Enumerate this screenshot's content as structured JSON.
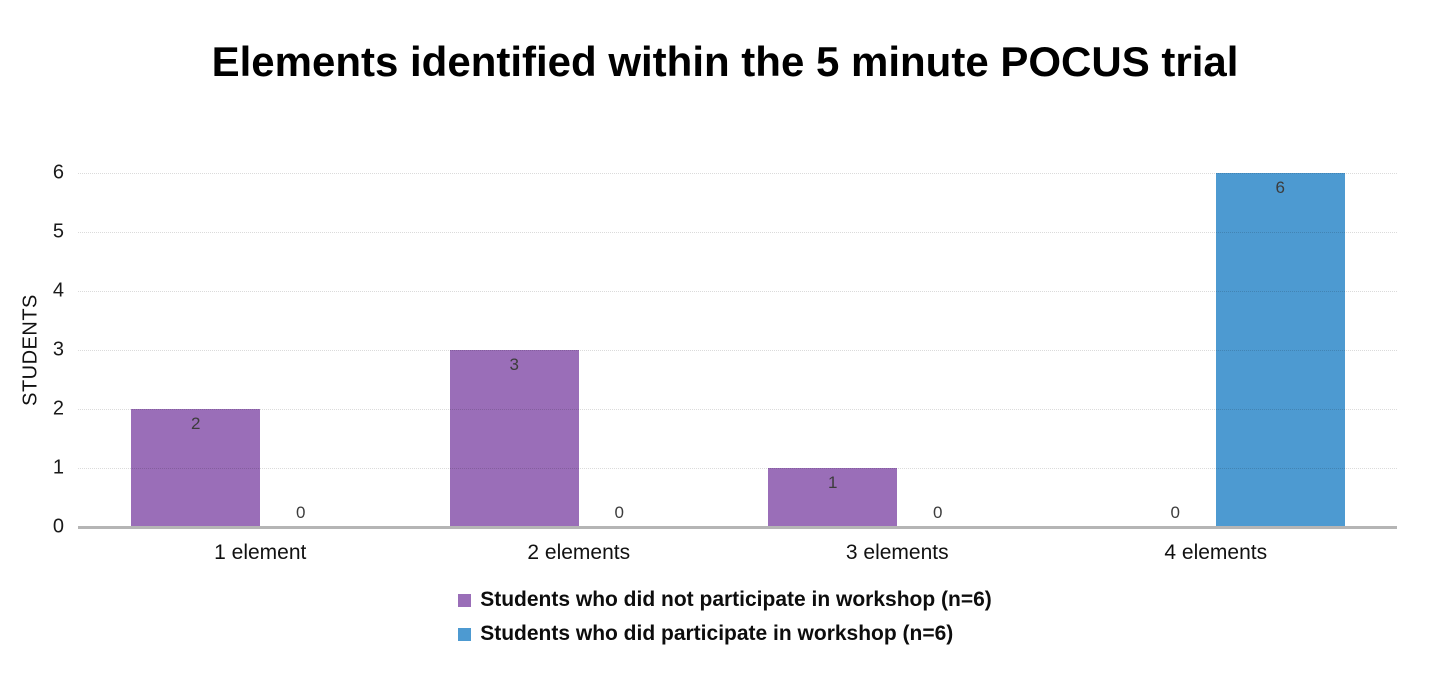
{
  "chart_data": {
    "type": "bar",
    "title": "Elements identified within the 5 minute POCUS trial",
    "ylabel": "STUDENTS",
    "xlabel": "",
    "categories": [
      "1 element",
      "2 elements",
      "3 elements",
      "4 elements"
    ],
    "series": [
      {
        "name": "Students who did not participate in workshop (n=6)",
        "color": "#9a6eb8",
        "values": [
          2,
          3,
          1,
          0
        ]
      },
      {
        "name": "Students who did participate in workshop (n=6)",
        "color": "#4d9ad1",
        "values": [
          0,
          0,
          0,
          6
        ]
      }
    ],
    "ylim": [
      0,
      6
    ],
    "yticks": [
      0,
      1,
      2,
      3,
      4,
      5,
      6
    ],
    "grid": "horizontal-dotted",
    "legend_position": "bottom",
    "data_labels": true
  },
  "palette": {
    "background": "#ffffff",
    "axis_line": "#b5b5b5",
    "gridline_dotted": "#dddddd",
    "data_label_text": "#3c3c3c",
    "tick_text": "#1a1a1a",
    "title_text": "#000000"
  }
}
